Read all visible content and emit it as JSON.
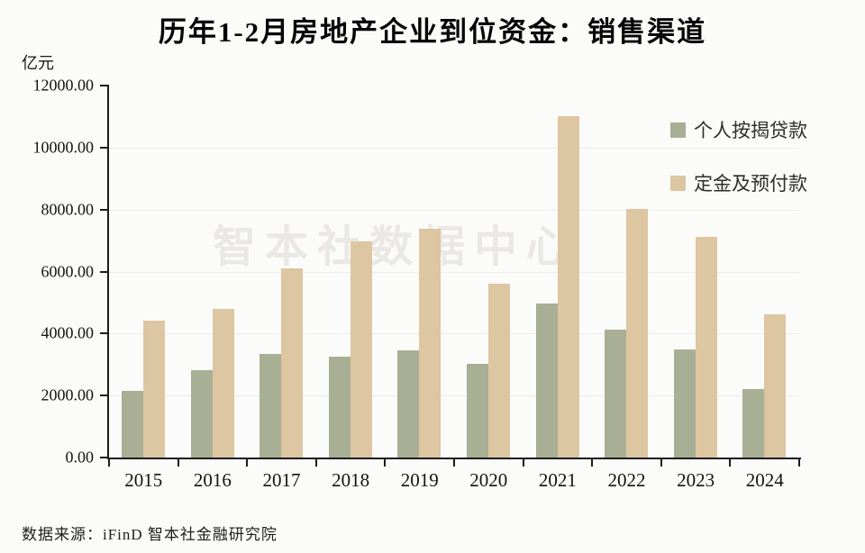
{
  "title": "历年1-2月房地产企业到位资金：销售渠道",
  "watermark": "智本社数据中心",
  "source": "数据来源：iFinD 智本社金融研究院",
  "chart_data": {
    "type": "bar",
    "title": "历年1-2月房地产企业到位资金：销售渠道",
    "unit_label": "亿元",
    "xlabel": "",
    "ylabel": "亿元",
    "ylim": [
      0,
      12000
    ],
    "ytick_step": 2000,
    "ytick_labels_top_to_bottom": [
      "12000.00",
      "10000.00",
      "8000.00",
      "6000.00",
      "4000.00",
      "2000.00",
      "0.00"
    ],
    "grid": true,
    "legend_position": "top-right",
    "categories": [
      "2015",
      "2016",
      "2017",
      "2018",
      "2019",
      "2020",
      "2021",
      "2022",
      "2023",
      "2024"
    ],
    "series": [
      {
        "name": "个人按揭贷款",
        "color": "#a8af94",
        "values": [
          2156,
          2818,
          3355,
          3248,
          3458,
          3030,
          4973,
          4124,
          3495,
          2214
        ]
      },
      {
        "name": "定金及预付款",
        "color": "#ddc6a2",
        "values": [
          4424,
          4780,
          6097,
          6961,
          7366,
          5603,
          11006,
          8027,
          7112,
          4630
        ]
      }
    ],
    "colors": {
      "axis": "#1c1c1c",
      "grid": "#ececea",
      "watermark": "#eae8e4",
      "background": "#fbfbf9"
    }
  }
}
